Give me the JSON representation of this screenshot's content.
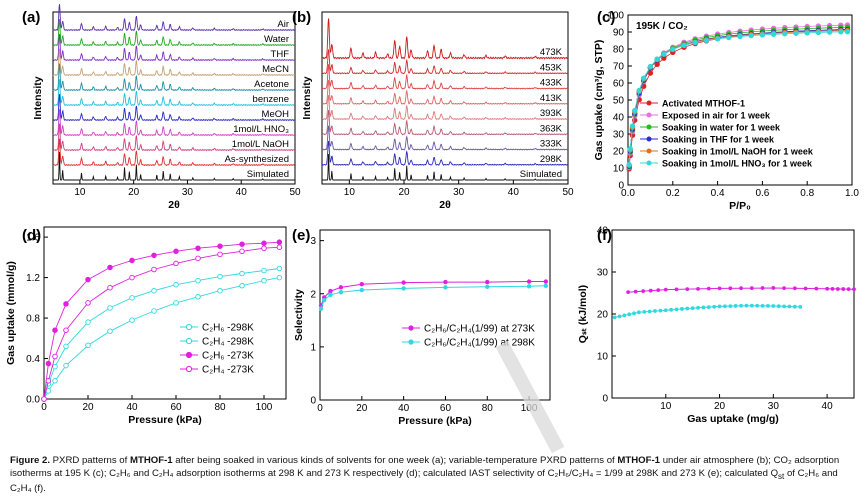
{
  "caption": {
    "label": "Figure 2.",
    "text_1": "PXRD patterns of",
    "compound_1": "MTHOF-1",
    "text_2": "after being soaked in various kinds of solvents for one week (a); variable-temperature PXRD patterns of",
    "compound_2": "MTHOF-1",
    "text_3": "under air atmosphere (b); CO₂ adsorption isotherms at 195 K (c); C₂H₆ and C₂H₄ adsorption isotherms at 298 K and 273 K respectively (d); calculated IAST selectivity of C₂H₆/C₂H₄ = 1/99 at 298K and 273 K (e); calculated Q",
    "text_sub": "st",
    "text_4": "of C₂H₆ and C₂H₄ (f)."
  },
  "chart_data": [
    {
      "panel": "(a)",
      "type": "line",
      "xlabel": "2θ",
      "ylabel": "Intensity",
      "xlim": [
        5,
        50
      ],
      "xticks": [
        10,
        20,
        30,
        40,
        50
      ],
      "series": [
        {
          "name": "Air",
          "color": "#5b2fa8"
        },
        {
          "name": "Water",
          "color": "#22aa22"
        },
        {
          "name": "THF",
          "color": "#7e2fc4"
        },
        {
          "name": "MeCN",
          "color": "#c8a070"
        },
        {
          "name": "Acetone",
          "color": "#1f8fa8"
        },
        {
          "name": "benzene",
          "color": "#22c0dd"
        },
        {
          "name": "MeOH",
          "color": "#2a2ac8"
        },
        {
          "name": "1mol/L HNO₃",
          "color": "#d040c8"
        },
        {
          "name": "1mol/L NaOH",
          "color": "#d04080"
        },
        {
          "name": "As-synthesized",
          "color": "#e03030"
        },
        {
          "name": "Simulated",
          "color": "#111111"
        }
      ]
    },
    {
      "panel": "(b)",
      "type": "line",
      "xlabel": "2θ",
      "ylabel": "Intensity",
      "xlim": [
        5,
        50
      ],
      "xticks": [
        10,
        20,
        30,
        40,
        50
      ],
      "series": [
        {
          "name": "473K",
          "color": "#cc1a1a"
        },
        {
          "name": "453K",
          "color": "#d42c2c"
        },
        {
          "name": "433K",
          "color": "#dc4a4a"
        },
        {
          "name": "413K",
          "color": "#e06666"
        },
        {
          "name": "393K",
          "color": "#e07a7a"
        },
        {
          "name": "363K",
          "color": "#b85c74"
        },
        {
          "name": "333K",
          "color": "#6a5aa8"
        },
        {
          "name": "298K",
          "color": "#2a2ab8"
        },
        {
          "name": "Simulated",
          "color": "#111111"
        }
      ]
    },
    {
      "panel": "(c)",
      "type": "scatter",
      "title": "195K / CO₂",
      "xlabel": "P/P₀",
      "ylabel": "Gas uptake (cm³/g, STP)",
      "xlim": [
        0,
        1
      ],
      "ylim": [
        0,
        100
      ],
      "xticks": [
        0.0,
        0.2,
        0.4,
        0.6,
        0.8,
        1.0
      ],
      "yticks": [
        0,
        10,
        20,
        30,
        40,
        50,
        60,
        70,
        80,
        90,
        100
      ],
      "series": [
        {
          "name": "Activated MTHOF-1",
          "color": "#e02020",
          "qmax": 95.8
        },
        {
          "name": "Exposed in air for 1 week",
          "color": "#e870e0",
          "qmax": 98.2
        },
        {
          "name": "Soaking in water for 1 week",
          "color": "#22bb22",
          "qmax": 96.6
        },
        {
          "name": "Soaking in THF for 1 week",
          "color": "#2a2ad8",
          "qmax": 95.0
        },
        {
          "name": "Soaking in 1mol/L NaOH for 1 week",
          "color": "#e07020",
          "qmax": 94.2
        },
        {
          "name": "Soaking in 1mol/L HNO₃ for 1 week",
          "color": "#30d8d8",
          "qmax": 93.3
        }
      ]
    },
    {
      "panel": "(d)",
      "type": "line",
      "xlabel": "Pressure (kPa)",
      "ylabel": "Gas uptake (mmol/g)",
      "xlim": [
        0,
        110
      ],
      "ylim": [
        0,
        1.7
      ],
      "xticks": [
        0,
        20,
        40,
        60,
        80,
        100
      ],
      "yticks": [
        0.0,
        0.4,
        0.8,
        1.2,
        1.6
      ],
      "series": [
        {
          "name": "C₂H₆ -298K",
          "color": "#30d8e0",
          "filled": false,
          "x": [
            0,
            2,
            5,
            10,
            20,
            30,
            40,
            50,
            60,
            70,
            80,
            90,
            100,
            107
          ],
          "y": [
            0,
            0.15,
            0.32,
            0.52,
            0.76,
            0.9,
            1.0,
            1.07,
            1.13,
            1.17,
            1.21,
            1.24,
            1.27,
            1.29
          ]
        },
        {
          "name": "C₂H₄ -298K",
          "color": "#30d8e0",
          "filled": false,
          "x": [
            0,
            2,
            5,
            10,
            20,
            30,
            40,
            50,
            60,
            70,
            80,
            90,
            100,
            107
          ],
          "y": [
            0,
            0.08,
            0.18,
            0.33,
            0.53,
            0.67,
            0.78,
            0.87,
            0.95,
            1.01,
            1.07,
            1.12,
            1.17,
            1.2
          ]
        },
        {
          "name": "C₂H₆ -273K",
          "color": "#e020e0",
          "filled": true,
          "x": [
            0,
            2,
            5,
            10,
            20,
            30,
            40,
            50,
            60,
            70,
            80,
            90,
            100,
            107
          ],
          "y": [
            0,
            0.35,
            0.68,
            0.94,
            1.18,
            1.3,
            1.37,
            1.42,
            1.46,
            1.49,
            1.51,
            1.53,
            1.54,
            1.55
          ]
        },
        {
          "name": "C₂H₄ -273K",
          "color": "#e020e0",
          "filled": false,
          "x": [
            0,
            2,
            5,
            10,
            20,
            30,
            40,
            50,
            60,
            70,
            80,
            90,
            100,
            107
          ],
          "y": [
            0,
            0.18,
            0.42,
            0.68,
            0.95,
            1.1,
            1.2,
            1.28,
            1.34,
            1.39,
            1.43,
            1.46,
            1.49,
            1.5
          ]
        }
      ]
    },
    {
      "panel": "(e)",
      "type": "line",
      "xlabel": "Pressure (kPa)",
      "ylabel": "Selectivity",
      "xlim": [
        0,
        110
      ],
      "ylim": [
        0,
        3.2
      ],
      "xticks": [
        0,
        20,
        40,
        60,
        80,
        100
      ],
      "yticks": [
        0,
        1,
        2,
        3
      ],
      "series": [
        {
          "name": "C₂H₆/C₂H₄(1/99) at 273K",
          "color": "#e020e0",
          "x": [
            0.5,
            2,
            5,
            10,
            20,
            40,
            60,
            80,
            100,
            108
          ],
          "y": [
            1.78,
            1.93,
            2.05,
            2.12,
            2.18,
            2.21,
            2.22,
            2.22,
            2.23,
            2.23
          ]
        },
        {
          "name": "C₂H₆/C₂H₄(1/99) at 298K",
          "color": "#30d8e0",
          "x": [
            0.5,
            2,
            5,
            10,
            20,
            40,
            60,
            80,
            100,
            108
          ],
          "y": [
            1.72,
            1.88,
            1.98,
            2.03,
            2.07,
            2.1,
            2.12,
            2.13,
            2.14,
            2.15
          ]
        }
      ]
    },
    {
      "panel": "(f)",
      "type": "scatter",
      "xlabel": "Gas uptake (mg/g)",
      "ylabel": "Qₛₜ (kJ/mol)",
      "xlim": [
        0,
        45
      ],
      "ylim": [
        0,
        40
      ],
      "xticks": [
        10,
        20,
        30,
        40
      ],
      "yticks": [
        0,
        10,
        20,
        30,
        40
      ],
      "series": [
        {
          "name": "C₂H₆",
          "color": "#e020e0",
          "x": [
            3,
            10,
            20,
            30,
            40,
            45
          ],
          "y": [
            25.2,
            25.8,
            26.1,
            26.2,
            26.0,
            25.9
          ]
        },
        {
          "name": "C₂H₄",
          "color": "#30d8e0",
          "x": [
            0.5,
            5,
            10,
            15,
            20,
            25,
            30,
            35
          ],
          "y": [
            19.2,
            20.4,
            20.9,
            21.4,
            21.8,
            22.0,
            21.9,
            21.7
          ]
        }
      ]
    }
  ]
}
